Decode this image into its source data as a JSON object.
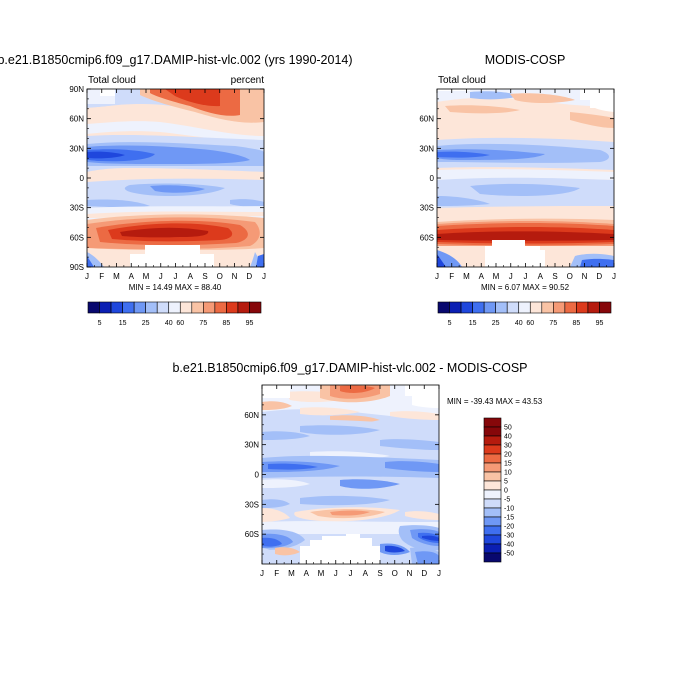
{
  "chart_data": [
    {
      "type": "heatmap",
      "title": "b.e21.B1850cmip6.f09_g17.DAMIP-hist-vlc.002 (yrs 1990-2014)",
      "left_label": "Total cloud",
      "right_label": "percent",
      "stats": "MIN =  14.49 MAX =  88.40",
      "x_ticks": [
        "J",
        "F",
        "M",
        "A",
        "M",
        "J",
        "J",
        "A",
        "S",
        "O",
        "N",
        "D",
        "J"
      ],
      "y_ticks": [
        "90N",
        "60N",
        "30N",
        "0",
        "30S",
        "60S",
        "90S"
      ],
      "xlim": [
        0,
        12
      ],
      "ylim": [
        -90,
        90
      ],
      "colorbar_labels": [
        "5",
        "15",
        "25",
        "40",
        "60",
        "75",
        "85",
        "95"
      ]
    },
    {
      "type": "heatmap",
      "title": "MODIS-COSP",
      "left_label": "Total cloud",
      "stats": "MIN =   6.07 MAX =  90.52",
      "x_ticks": [
        "J",
        "F",
        "M",
        "A",
        "M",
        "J",
        "J",
        "A",
        "S",
        "O",
        "N",
        "D",
        "J"
      ],
      "y_ticks": [
        "60N",
        "30N",
        "0",
        "30S",
        "60S"
      ],
      "xlim": [
        0,
        12
      ],
      "ylim": [
        -90,
        90
      ],
      "colorbar_labels": [
        "5",
        "15",
        "25",
        "40",
        "60",
        "75",
        "85",
        "95"
      ]
    },
    {
      "type": "heatmap",
      "title": "b.e21.B1850cmip6.f09_g17.DAMIP-hist-vlc.002 - MODIS-COSP",
      "stats": "MIN = -39.43 MAX =  43.53",
      "x_ticks": [
        "J",
        "F",
        "M",
        "A",
        "M",
        "J",
        "J",
        "A",
        "S",
        "O",
        "N",
        "D",
        "J"
      ],
      "y_ticks": [
        "60N",
        "30N",
        "0",
        "30S",
        "60S"
      ],
      "xlim": [
        0,
        12
      ],
      "ylim": [
        -90,
        90
      ],
      "colorbar_labels": [
        "50",
        "40",
        "30",
        "20",
        "15",
        "10",
        "5",
        "0",
        "-5",
        "-10",
        "-15",
        "-20",
        "-30",
        "-40",
        "-50"
      ]
    }
  ],
  "colors": {
    "seq": [
      "#08086e",
      "#0b1fb3",
      "#1f47dd",
      "#3f6ff0",
      "#6f98f5",
      "#a3bff8",
      "#cfdcfa",
      "#eef2fd",
      "#fde6d9",
      "#f9c3a5",
      "#f59a76",
      "#ec6a43",
      "#dc3a1c",
      "#b51b0e",
      "#86070a"
    ],
    "div": [
      "#08086e",
      "#0b1fb3",
      "#1f47dd",
      "#3f6ff0",
      "#6f98f5",
      "#a3bff8",
      "#cfdcfa",
      "#eef2fd",
      "#fde6d9",
      "#f9c3a5",
      "#f59a76",
      "#ec6a43",
      "#dc3a1c",
      "#b51b0e",
      "#86070a"
    ]
  }
}
